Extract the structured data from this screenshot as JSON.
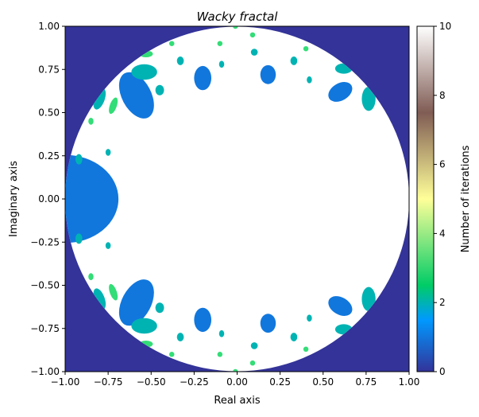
{
  "chart_data": {
    "type": "heatmap",
    "title": "Wacky fractal",
    "xlabel": "Real axis",
    "ylabel": "Imaginary axis",
    "xlim": [
      -1,
      1
    ],
    "ylim": [
      -1,
      1
    ],
    "xticks": [
      "−1.00",
      "−0.75",
      "−0.50",
      "−0.25",
      "0.00",
      "0.25",
      "0.50",
      "0.75",
      "1.00"
    ],
    "yticks": [
      "−1.00",
      "−0.75",
      "−0.50",
      "−0.25",
      "0.00",
      "0.25",
      "0.50",
      "0.75",
      "1.00"
    ],
    "colormap": "terrain",
    "colorbar": {
      "label": "Number of iterations",
      "range": [
        0,
        10
      ],
      "ticks": [
        "0",
        "2",
        "4",
        "6",
        "8",
        "10"
      ]
    },
    "colors": {
      "outside": "#333399",
      "inside": "#ffffff",
      "level1": "#1177dd",
      "level2": "#00b3b3",
      "level3": "#33dd77"
    }
  }
}
